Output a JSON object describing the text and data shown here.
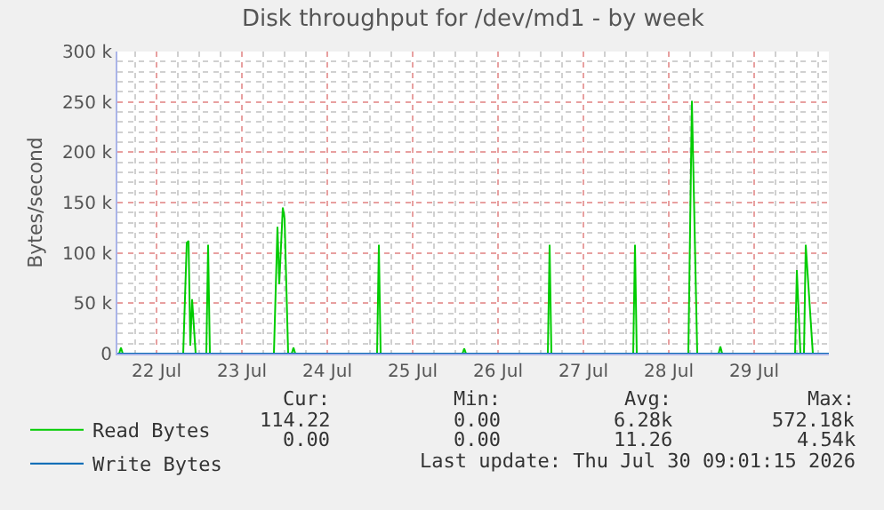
{
  "chart_data": {
    "type": "line",
    "title": "Disk throughput for /dev/md1 - by week",
    "ylabel": "Bytes/second",
    "x": [
      "2026-07-22T01:00",
      "2026-07-22T01:30",
      "2026-07-22T02:00",
      "2026-07-22T02:30",
      "2026-07-22T19:30",
      "2026-07-22T20:30",
      "2026-07-22T21:00",
      "2026-07-22T21:30",
      "2026-07-22T22:00",
      "2026-07-22T23:00",
      "2026-07-23T02:00",
      "2026-07-23T02:30",
      "2026-07-23T03:00",
      "2026-07-23T21:00",
      "2026-07-23T22:00",
      "2026-07-23T22:30",
      "2026-07-23T23:30",
      "2026-07-24T00:00",
      "2026-07-24T01:00",
      "2026-07-24T02:00",
      "2026-07-24T02:30",
      "2026-07-24T03:00",
      "2026-07-25T02:00",
      "2026-07-25T02:30",
      "2026-07-25T03:00",
      "2026-07-26T02:00",
      "2026-07-26T02:30",
      "2026-07-26T03:00",
      "2026-07-27T02:00",
      "2026-07-27T02:30",
      "2026-07-27T03:00",
      "2026-07-28T02:00",
      "2026-07-28T02:30",
      "2026-07-28T03:00",
      "2026-07-28T17:30",
      "2026-07-28T18:30",
      "2026-07-28T20:00",
      "2026-07-29T02:00",
      "2026-07-29T02:30",
      "2026-07-29T03:00",
      "2026-07-29T23:30",
      "2026-07-30T00:00",
      "2026-07-30T01:00",
      "2026-07-30T02:00",
      "2026-07-30T02:30",
      "2026-07-30T03:30",
      "2026-07-30T04:30",
      "2026-07-30T09:00"
    ],
    "series": [
      {
        "name": "Read Bytes",
        "color": "#00cc00",
        "values": [
          0,
          0,
          6000,
          0,
          0,
          110000,
          112000,
          8000,
          54000,
          0,
          0,
          108000,
          0,
          0,
          126000,
          69000,
          145000,
          134000,
          0,
          0,
          6000,
          0,
          0,
          108000,
          0,
          0,
          5000,
          0,
          0,
          108000,
          0,
          0,
          108000,
          0,
          0,
          251000,
          0,
          0,
          7000,
          0,
          0,
          83000,
          0,
          0,
          108000,
          54000,
          0,
          0
        ]
      },
      {
        "name": "Write Bytes",
        "color": "#0066b3",
        "x": [
          "2026-07-22T01:00",
          "2026-07-30T09:00"
        ],
        "values": [
          0,
          0
        ]
      }
    ],
    "xlim": [
      "2026-07-22T01:00",
      "2026-07-30T09:00"
    ],
    "xticks": [
      {
        "value": "2026-07-22T12:00",
        "label": "22 Jul"
      },
      {
        "value": "2026-07-23T12:00",
        "label": "23 Jul"
      },
      {
        "value": "2026-07-24T12:00",
        "label": "24 Jul"
      },
      {
        "value": "2026-07-25T12:00",
        "label": "25 Jul"
      },
      {
        "value": "2026-07-26T12:00",
        "label": "26 Jul"
      },
      {
        "value": "2026-07-27T12:00",
        "label": "27 Jul"
      },
      {
        "value": "2026-07-28T12:00",
        "label": "28 Jul"
      },
      {
        "value": "2026-07-29T12:00",
        "label": "29 Jul"
      }
    ],
    "ylim": [
      0,
      300000
    ],
    "yticks": [
      0,
      {
        "value": 50000,
        "label": "50 k"
      },
      {
        "value": 100000,
        "label": "100 k"
      },
      {
        "value": 150000,
        "label": "150 k"
      },
      {
        "value": 200000,
        "label": "200 k"
      },
      {
        "value": 250000,
        "label": "250 k"
      },
      {
        "value": 300000,
        "label": "300 k"
      }
    ],
    "grid": true,
    "legend": "bottom",
    "marker": "none",
    "line_style": "solid",
    "annotations": [
      "Cur:",
      "Min:",
      "Avg:",
      "Max:",
      "114.22",
      "0.00",
      "6.28k",
      "572.18k",
      "0.00",
      "0.00",
      "11.26",
      "4.54k",
      "Last update: Thu Jul 30 09:01:15 2026"
    ]
  }
}
